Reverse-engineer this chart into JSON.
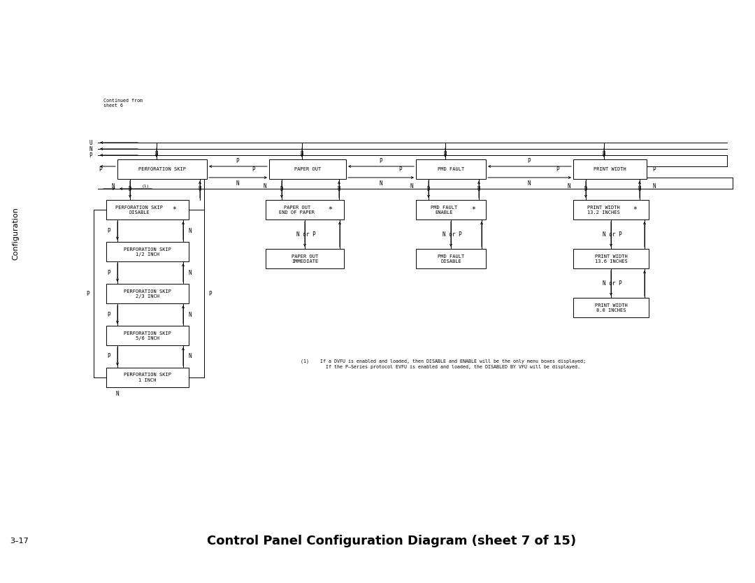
{
  "title": "Control Panel Configuration Diagram (sheet 7 of 15)",
  "page_label": "3–17",
  "side_label": "Configuration",
  "continued_from": "Continued from\nsheet 6",
  "footnote": "(1)    If a DVFU is enabled and loaded, then DISABLE and ENABLE will be the only menu boxes displayed;\n         If the P–Series protocol EVFU is enabled and loaded, the DISABLED BY VFU will be displayed.",
  "bg_color": "#ffffff",
  "line_color": "#000000",
  "text_color": "#000000",
  "font_size_box": 5.0,
  "font_size_label": 5.5,
  "font_size_small": 4.8
}
